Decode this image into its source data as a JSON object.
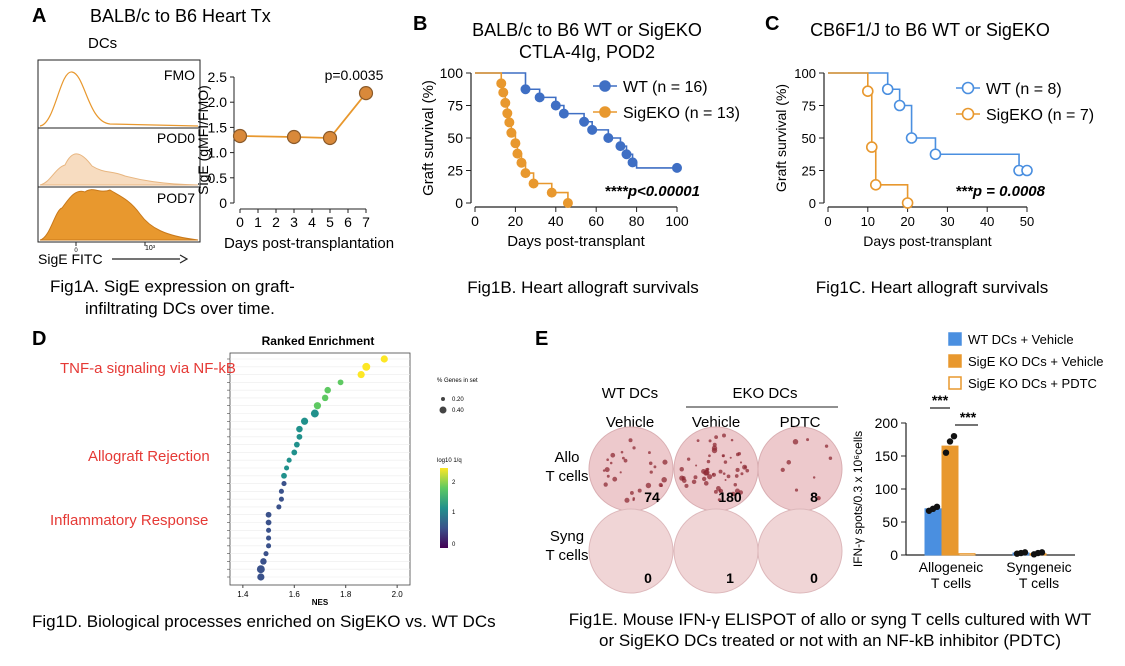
{
  "panels": {
    "A": {
      "letter": "A",
      "title": "BALB/c to B6 Heart Tx",
      "subtitle": "DCs",
      "histogram_labels": [
        "FMO",
        "POD0",
        "POD7"
      ],
      "hist_xlabel": "SigE FITC",
      "hist_tick_labels": [
        "0",
        "10³"
      ],
      "caption_line1": "Fig1A. SigE expression on graft-",
      "caption_line2": "infiltrating DCs over time."
    },
    "B": {
      "letter": "B",
      "title_line1": "BALB/c to B6 WT or SigEKO",
      "title_line2": "CTLA-4Ig, POD2",
      "caption": "Fig1B. Heart allograft survivals"
    },
    "C": {
      "letter": "C",
      "title": "CB6F1/J  to B6 WT or SigEKO",
      "caption": "Fig1C. Heart allograft survivals"
    },
    "D": {
      "letter": "D",
      "title": "Ranked Enrichment",
      "xlabel": "NES",
      "categories": [
        "TNF-a signaling via NF-kB",
        "Allograft Rejection",
        "Inflammatory Response"
      ],
      "size_legend_title": "% Genes in set",
      "size_legend_items": [
        "0.20",
        "0.40"
      ],
      "color_legend_title": "log10 1/q",
      "color_legend_ticks": [
        "2",
        "1",
        "0"
      ],
      "caption": "Fig1D. Biological processes enriched on SigEKO vs. WT DCs"
    },
    "E": {
      "letter": "E",
      "group_wt": "WT DCs",
      "group_eko": "EKO DCs",
      "col_labels": [
        "Vehicle",
        "Vehicle",
        "PDTC"
      ],
      "row_labels": [
        [
          "Allo",
          "T cells"
        ],
        [
          "Syng",
          "T cells"
        ]
      ],
      "spot_counts": [
        [
          "74",
          "180",
          "8"
        ],
        [
          "0",
          "1",
          "0"
        ]
      ],
      "caption_line1": "Fig1E. Mouse IFN-γ ELISPOT of allo or syng T cells cultured with WT",
      "caption_line2": "or SigEKO DCs treated or not with an NF-kB inhibitor (PDTC)"
    }
  },
  "colors": {
    "orange": "#E8982E",
    "blue": "#3F6FC4",
    "light_blue": "#4A8FE0",
    "red_label": "#E53935",
    "well_bg": "#EDC9CC",
    "spot": "#8E2A34"
  },
  "chart_data": [
    {
      "id": "A",
      "type": "line",
      "title": "",
      "xlabel": "Days post-transplantation",
      "ylabel": "SigE (gMFI/FMO)",
      "xlim": [
        0,
        7
      ],
      "ylim": [
        0,
        2.5
      ],
      "xticks": [
        0,
        1,
        2,
        3,
        4,
        5,
        6,
        7
      ],
      "yticks": [
        0,
        0.5,
        1.0,
        1.5,
        2.0,
        2.5
      ],
      "ytick_labels": [
        "0",
        "0.5",
        "1.0",
        "1.5",
        "2.0",
        "2.5"
      ],
      "x": [
        0,
        3,
        5,
        7
      ],
      "y": [
        1.33,
        1.31,
        1.29,
        2.18
      ],
      "annotation": "p=0.0035"
    },
    {
      "id": "B",
      "type": "line",
      "subtype": "survival",
      "xlabel": "Days post-transplant",
      "ylabel": "Graft survival (%)",
      "xlim": [
        0,
        100
      ],
      "ylim": [
        0,
        100
      ],
      "xticks": [
        0,
        20,
        40,
        60,
        80,
        100
      ],
      "yticks": [
        0,
        25,
        50,
        75,
        100
      ],
      "annotation": "****p<0.00001",
      "series": [
        {
          "name": "WT (n = 16)",
          "steps": [
            [
              0,
              100
            ],
            [
              25,
              87.5
            ],
            [
              32,
              81.25
            ],
            [
              40,
              75
            ],
            [
              44,
              68.75
            ],
            [
              54,
              62.5
            ],
            [
              58,
              56.25
            ],
            [
              66,
              50
            ],
            [
              72,
              43.75
            ],
            [
              75,
              37.5
            ],
            [
              78,
              31.25
            ],
            [
              80,
              27
            ],
            [
              100,
              27
            ]
          ],
          "markers": [
            [
              25,
              87.5
            ],
            [
              32,
              81.25
            ],
            [
              40,
              75
            ],
            [
              44,
              68.75
            ],
            [
              54,
              62.5
            ],
            [
              58,
              56.25
            ],
            [
              66,
              50
            ],
            [
              72,
              43.75
            ],
            [
              75,
              37.5
            ],
            [
              78,
              31.25
            ],
            [
              100,
              27
            ]
          ]
        },
        {
          "name": "SigEKO (n = 13)",
          "steps": [
            [
              0,
              100
            ],
            [
              13,
              92
            ],
            [
              14,
              85
            ],
            [
              15,
              77
            ],
            [
              16,
              69
            ],
            [
              17,
              62
            ],
            [
              18,
              54
            ],
            [
              20,
              46
            ],
            [
              21,
              38
            ],
            [
              23,
              31
            ],
            [
              25,
              23
            ],
            [
              29,
              15
            ],
            [
              38,
              8
            ],
            [
              46,
              0
            ]
          ],
          "markers": [
            [
              13,
              92
            ],
            [
              14,
              85
            ],
            [
              15,
              77
            ],
            [
              16,
              69
            ],
            [
              17,
              62
            ],
            [
              18,
              54
            ],
            [
              20,
              46
            ],
            [
              21,
              38
            ],
            [
              23,
              31
            ],
            [
              25,
              23
            ],
            [
              29,
              15
            ],
            [
              38,
              8
            ],
            [
              46,
              0
            ]
          ]
        }
      ]
    },
    {
      "id": "C",
      "type": "line",
      "subtype": "survival",
      "xlabel": "Days post-transplant",
      "ylabel": "Graft survival (%)",
      "xlim": [
        0,
        50
      ],
      "ylim": [
        0,
        100
      ],
      "xticks": [
        0,
        10,
        20,
        30,
        40,
        50
      ],
      "yticks": [
        0,
        25,
        50,
        75,
        100
      ],
      "annotation": "***p = 0.0008",
      "series": [
        {
          "name": "WT (n = 8)",
          "steps": [
            [
              0,
              100
            ],
            [
              15,
              87.5
            ],
            [
              18,
              75
            ],
            [
              21,
              50
            ],
            [
              27,
              37.5
            ],
            [
              48,
              25
            ],
            [
              50,
              25
            ]
          ],
          "markers": [
            [
              15,
              87.5
            ],
            [
              18,
              75
            ],
            [
              21,
              50
            ],
            [
              27,
              37.5
            ],
            [
              48,
              25
            ],
            [
              50,
              25
            ]
          ]
        },
        {
          "name": "SigEKO (n = 7)",
          "steps": [
            [
              0,
              100
            ],
            [
              10,
              86
            ],
            [
              11,
              43
            ],
            [
              12,
              14
            ],
            [
              20,
              0
            ]
          ],
          "markers": [
            [
              10,
              86
            ],
            [
              11,
              43
            ],
            [
              12,
              14
            ],
            [
              20,
              0
            ]
          ]
        }
      ]
    },
    {
      "id": "E",
      "type": "bar",
      "ylabel": "IFN-γ spots/0.3 x 10⁶cells",
      "ylim": [
        0,
        200
      ],
      "yticks": [
        0,
        50,
        100,
        150,
        200
      ],
      "categories": [
        "Allogeneic T cells",
        "Syngeneic T cells"
      ],
      "category_lines": [
        [
          "Allogeneic",
          "T cells"
        ],
        [
          "Syngeneic",
          "T cells"
        ]
      ],
      "series": [
        {
          "name": "WT DCs + Vehicle",
          "values": [
            70,
            3
          ],
          "points": [
            [
              67,
              70,
              73
            ],
            [
              2,
              3,
              4
            ]
          ]
        },
        {
          "name": "SigE KO DCs + Vehicle",
          "values": [
            165,
            2
          ],
          "points": [
            [
              155,
              172,
              180
            ],
            [
              1,
              3,
              4
            ]
          ]
        },
        {
          "name": "SigE KO DCs + PDTC",
          "values": [
            2,
            0
          ],
          "points": [
            [],
            []
          ]
        }
      ],
      "significance": [
        "***",
        "***"
      ]
    },
    {
      "id": "D",
      "type": "scatter",
      "title": "Ranked Enrichment",
      "xlabel": "NES",
      "xlim": [
        1.35,
        2.05
      ],
      "xticks": [
        1.4,
        1.6,
        1.8,
        2.0
      ],
      "xtick_labels": [
        "1.4",
        "1.6",
        "1.8",
        "2.0"
      ],
      "x": [
        1.95,
        1.88,
        1.86,
        1.78,
        1.73,
        1.72,
        1.69,
        1.68,
        1.64,
        1.62,
        1.62,
        1.61,
        1.6,
        1.58,
        1.57,
        1.56,
        1.56,
        1.55,
        1.55,
        1.54,
        1.5,
        1.5,
        1.5,
        1.5,
        1.5,
        1.49,
        1.48,
        1.47,
        1.47
      ],
      "size": [
        0.3,
        0.35,
        0.3,
        0.2,
        0.25,
        0.25,
        0.3,
        0.35,
        0.3,
        0.25,
        0.2,
        0.2,
        0.2,
        0.15,
        0.15,
        0.2,
        0.15,
        0.15,
        0.15,
        0.15,
        0.2,
        0.2,
        0.15,
        0.15,
        0.15,
        0.15,
        0.25,
        0.35,
        0.3
      ],
      "color_value": [
        2.8,
        2.8,
        2.7,
        2.5,
        2.2,
        2.1,
        1.9,
        1.8,
        1.6,
        1.5,
        1.4,
        1.35,
        1.3,
        1.3,
        1.2,
        1.15,
        1.1,
        1.05,
        1.05,
        1.0,
        0.9,
        0.85,
        0.8,
        0.8,
        0.75,
        0.7,
        0.6,
        0.5,
        0.45
      ]
    }
  ]
}
